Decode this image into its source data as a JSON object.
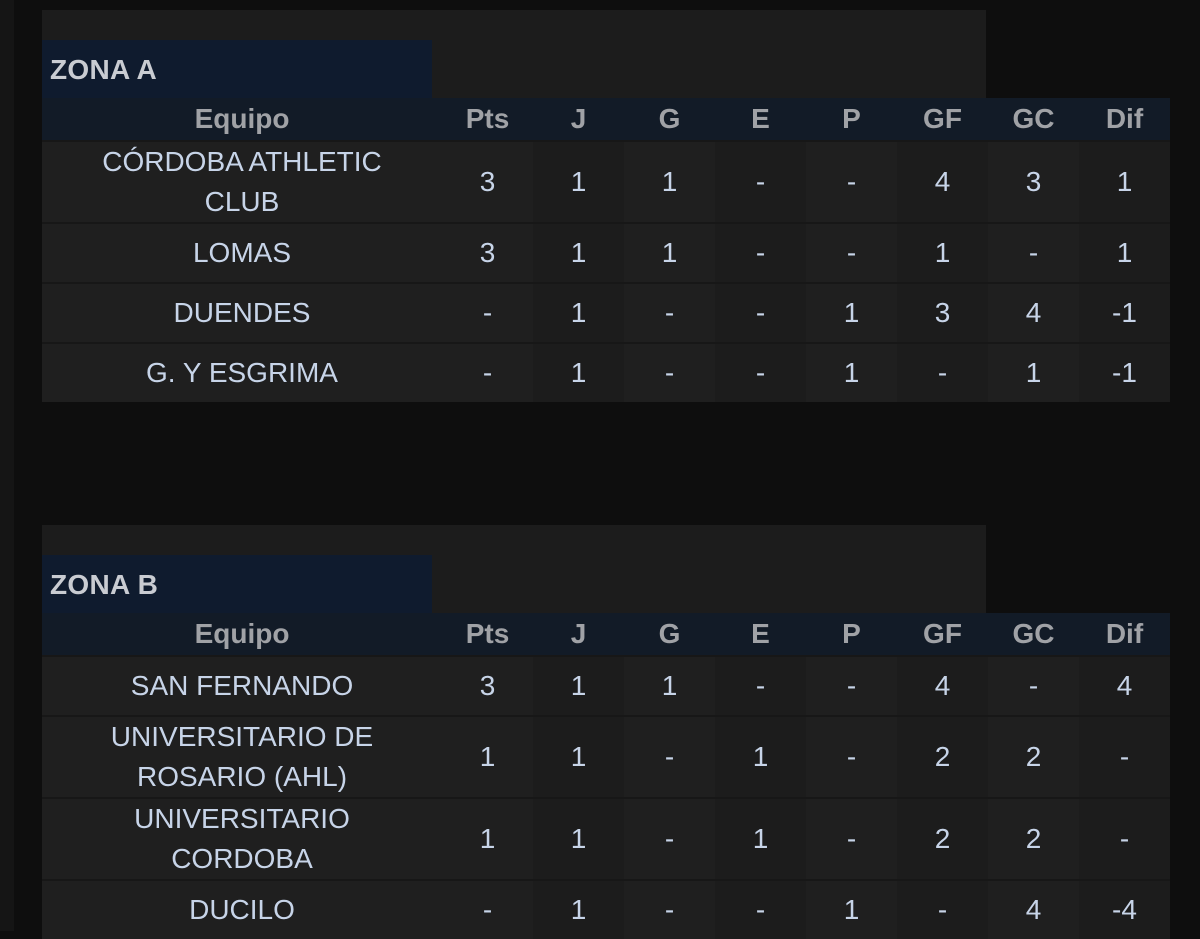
{
  "header_columns": {
    "team": "Equipo",
    "pts": "Pts",
    "j": "J",
    "g": "G",
    "e": "E",
    "p": "P",
    "gf": "GF",
    "gc": "GC",
    "dif": "Dif"
  },
  "zones": [
    {
      "title": "ZONA A",
      "rows": [
        {
          "team": "CÓRDOBA ATHLETIC CLUB",
          "pts": "3",
          "j": "1",
          "g": "1",
          "e": "-",
          "p": "-",
          "gf": "4",
          "gc": "3",
          "dif": "1"
        },
        {
          "team": "LOMAS",
          "pts": "3",
          "j": "1",
          "g": "1",
          "e": "-",
          "p": "-",
          "gf": "1",
          "gc": "-",
          "dif": "1"
        },
        {
          "team": "DUENDES",
          "pts": "-",
          "j": "1",
          "g": "-",
          "e": "-",
          "p": "1",
          "gf": "3",
          "gc": "4",
          "dif": "-1"
        },
        {
          "team": "G. Y ESGRIMA",
          "pts": "-",
          "j": "1",
          "g": "-",
          "e": "-",
          "p": "1",
          "gf": "-",
          "gc": "1",
          "dif": "-1"
        }
      ]
    },
    {
      "title": "ZONA B",
      "rows": [
        {
          "team": "SAN FERNANDO",
          "pts": "3",
          "j": "1",
          "g": "1",
          "e": "-",
          "p": "-",
          "gf": "4",
          "gc": "-",
          "dif": "4"
        },
        {
          "team": "UNIVERSITARIO DE ROSARIO (AHL)",
          "pts": "1",
          "j": "1",
          "g": "-",
          "e": "1",
          "p": "-",
          "gf": "2",
          "gc": "2",
          "dif": "-"
        },
        {
          "team": "UNIVERSITARIO CORDOBA",
          "pts": "1",
          "j": "1",
          "g": "-",
          "e": "1",
          "p": "-",
          "gf": "2",
          "gc": "2",
          "dif": "-"
        },
        {
          "team": "DUCILO",
          "pts": "-",
          "j": "1",
          "g": "-",
          "e": "-",
          "p": "1",
          "gf": "-",
          "gc": "4",
          "dif": "-4"
        }
      ]
    }
  ]
}
